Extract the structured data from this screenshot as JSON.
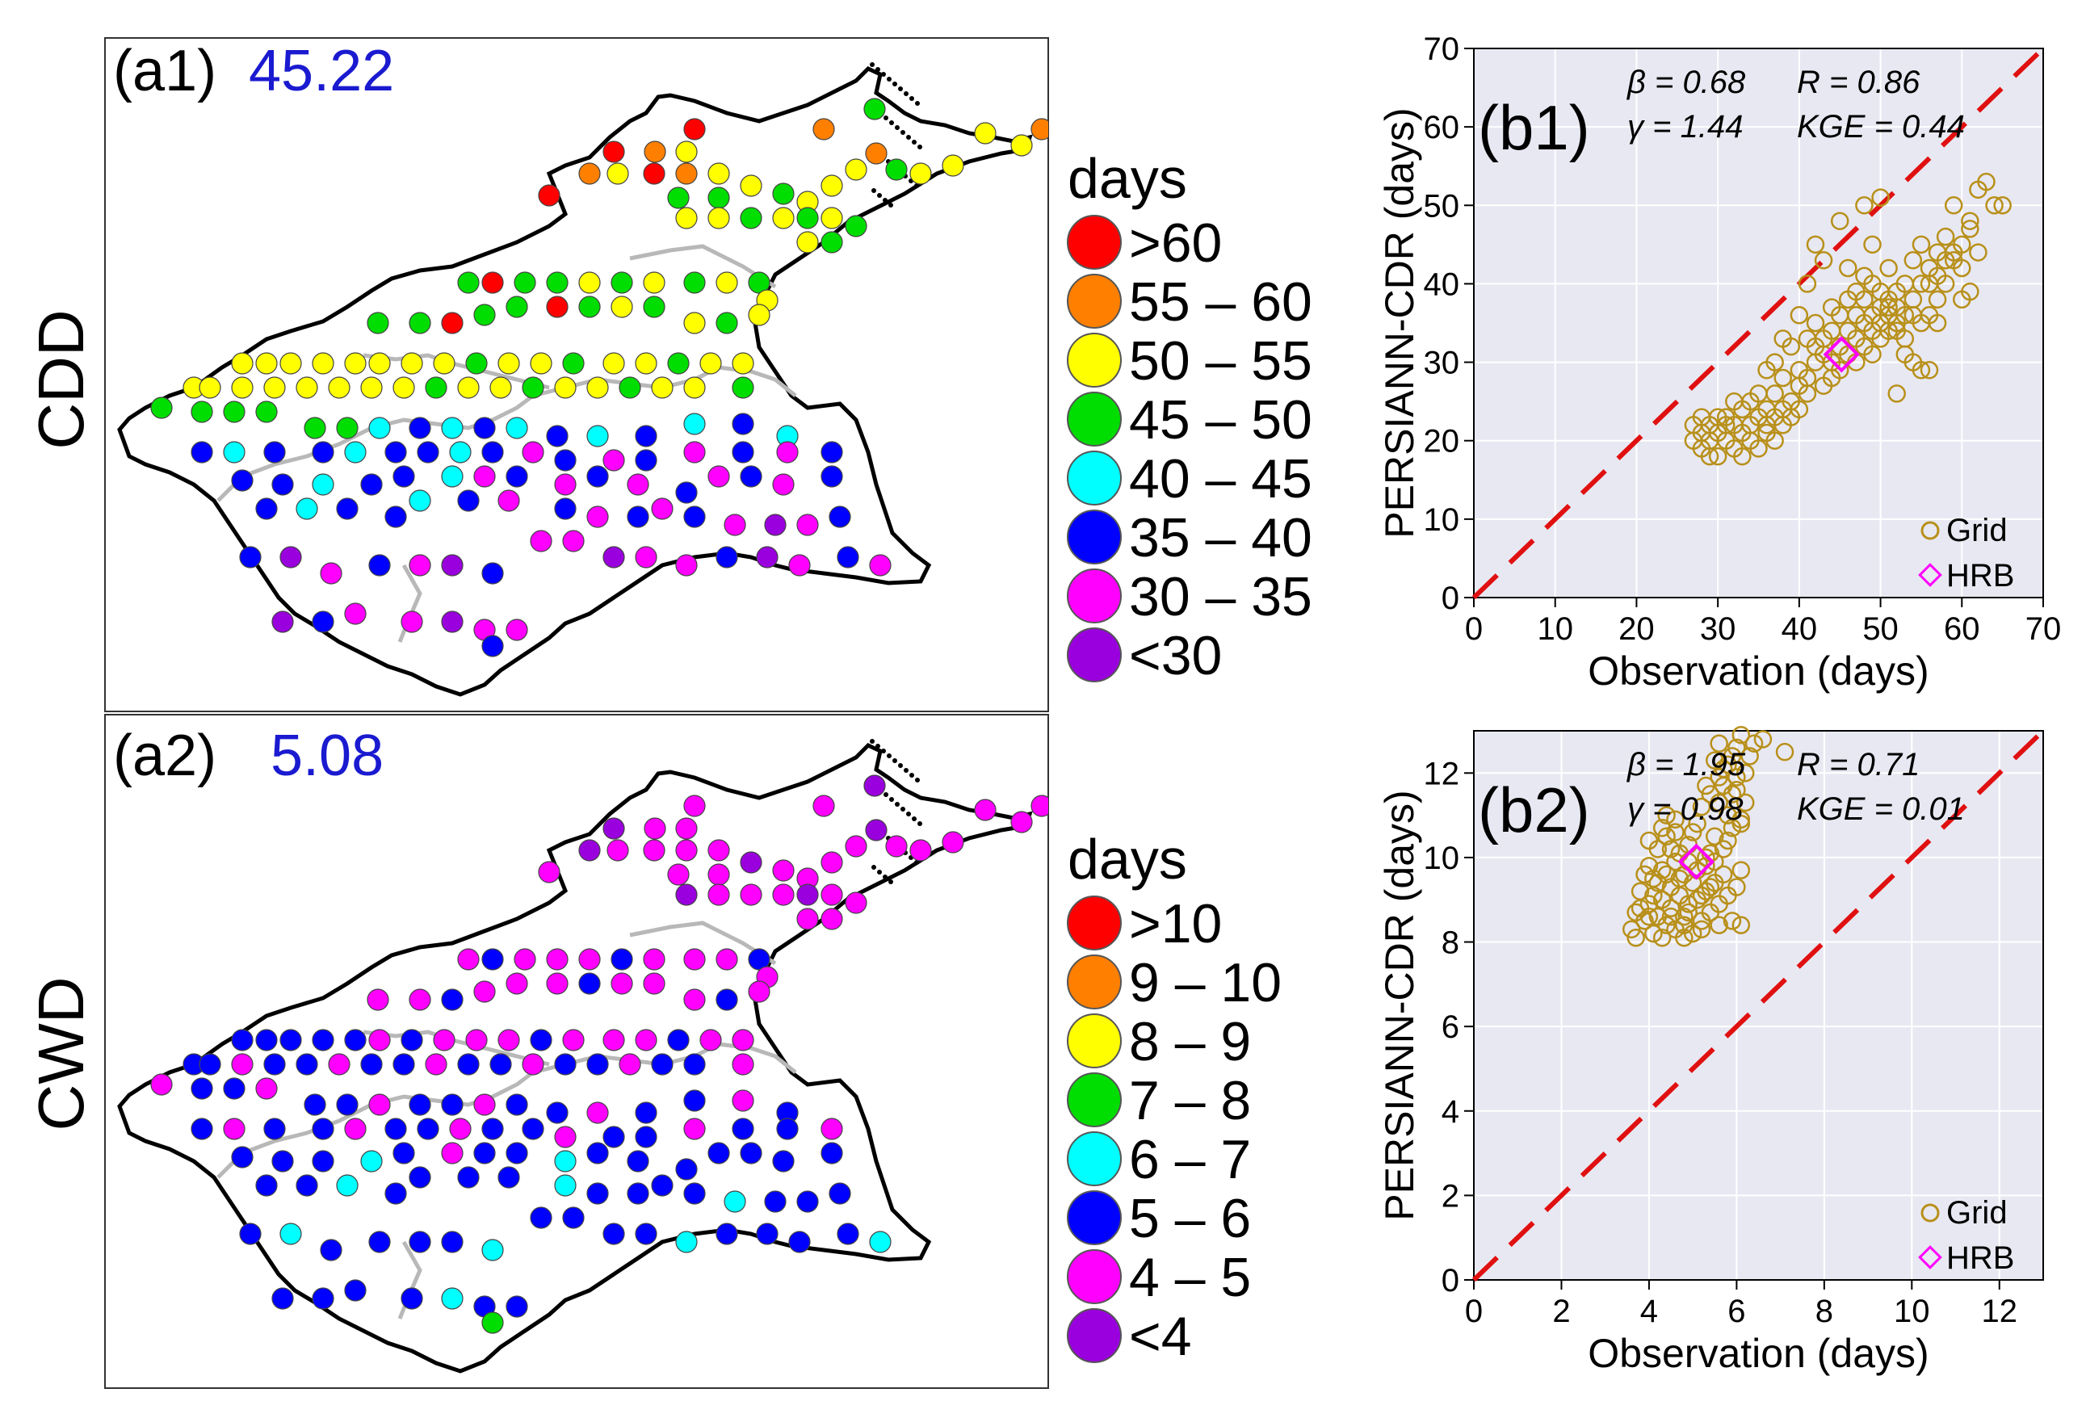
{
  "panels": {
    "a1": {
      "label": "(a1)",
      "value": "45.22",
      "row_label": "CDD"
    },
    "a2": {
      "label": "(a2)",
      "value": "5.08",
      "row_label": "CWD"
    }
  },
  "legend_cdd": {
    "title": "days",
    "items": [
      {
        "label": ">60",
        "color": "#ff0000"
      },
      {
        "label": "55 – 60",
        "color": "#ff7f00"
      },
      {
        "label": "50 – 55",
        "color": "#ffff00"
      },
      {
        "label": "45 – 50",
        "color": "#00dd00"
      },
      {
        "label": "40 – 45",
        "color": "#00ffff"
      },
      {
        "label": "35 – 40",
        "color": "#0000ff"
      },
      {
        "label": "30 – 35",
        "color": "#ff00ff"
      },
      {
        "label": "<30",
        "color": "#9900dd"
      }
    ]
  },
  "legend_cwd": {
    "title": "days",
    "items": [
      {
        "label": ">10",
        "color": "#ff0000"
      },
      {
        "label": "9 – 10",
        "color": "#ff7f00"
      },
      {
        "label": "8 – 9",
        "color": "#ffff00"
      },
      {
        "label": "7 – 8",
        "color": "#00dd00"
      },
      {
        "label": "6 – 7",
        "color": "#00ffff"
      },
      {
        "label": "5 – 6",
        "color": "#0000ff"
      },
      {
        "label": "4 – 5",
        "color": "#ff00ff"
      },
      {
        "label": "<4",
        "color": "#9900dd"
      }
    ]
  },
  "chart_data": [
    {
      "id": "b1",
      "type": "scatter",
      "panel_label": "(b1)",
      "xlabel": "Observation (days)",
      "ylabel": "PERSIANN-CDR (days)",
      "xlim": [
        0,
        70
      ],
      "ylim": [
        0,
        70
      ],
      "xticks": [
        0,
        10,
        20,
        30,
        40,
        50,
        60,
        70
      ],
      "yticks": [
        0,
        10,
        20,
        30,
        40,
        50,
        60,
        70
      ],
      "stats": {
        "beta": "β = 0.68",
        "R": "R = 0.86",
        "gamma": "γ = 1.44",
        "KGE": "KGE = 0.44"
      },
      "legend": [
        "Grid",
        "HRB"
      ],
      "hrb": [
        45.2,
        31
      ],
      "grid": [
        [
          27,
          22
        ],
        [
          27,
          20
        ],
        [
          28,
          19
        ],
        [
          28,
          21
        ],
        [
          29,
          22
        ],
        [
          29,
          18
        ],
        [
          30,
          21
        ],
        [
          30,
          23
        ],
        [
          31,
          22
        ],
        [
          31,
          20
        ],
        [
          32,
          19
        ],
        [
          32,
          22
        ],
        [
          33,
          21
        ],
        [
          33,
          18
        ],
        [
          34,
          22
        ],
        [
          34,
          20
        ],
        [
          35,
          19
        ],
        [
          35,
          23
        ],
        [
          36,
          21
        ],
        [
          36,
          22
        ],
        [
          37,
          23
        ],
        [
          37,
          20
        ],
        [
          38,
          24
        ],
        [
          38,
          22
        ],
        [
          39,
          23
        ],
        [
          39,
          25
        ],
        [
          40,
          24
        ],
        [
          40,
          27
        ],
        [
          41,
          26
        ],
        [
          41,
          28
        ],
        [
          42,
          30
        ],
        [
          42,
          35
        ],
        [
          43,
          31
        ],
        [
          43,
          33
        ],
        [
          44,
          30
        ],
        [
          44,
          28
        ],
        [
          45,
          32
        ],
        [
          45,
          29
        ],
        [
          46,
          34
        ],
        [
          46,
          31
        ],
        [
          47,
          33
        ],
        [
          47,
          36
        ],
        [
          47,
          30
        ],
        [
          48,
          35
        ],
        [
          48,
          32
        ],
        [
          48,
          38
        ],
        [
          49,
          36
        ],
        [
          49,
          34
        ],
        [
          49,
          31
        ],
        [
          50,
          37
        ],
        [
          50,
          35
        ],
        [
          50,
          33
        ],
        [
          51,
          38
        ],
        [
          51,
          36
        ],
        [
          51,
          34
        ],
        [
          52,
          39
        ],
        [
          52,
          37
        ],
        [
          52,
          35
        ],
        [
          53,
          36
        ],
        [
          53,
          40
        ],
        [
          54,
          38
        ],
        [
          54,
          43
        ],
        [
          55,
          45
        ],
        [
          55,
          40
        ],
        [
          56,
          42
        ],
        [
          56,
          36
        ],
        [
          57,
          38
        ],
        [
          57,
          44
        ],
        [
          58,
          46
        ],
        [
          58,
          40
        ],
        [
          59,
          43
        ],
        [
          59,
          50
        ],
        [
          60,
          45
        ],
        [
          60,
          42
        ],
        [
          61,
          48
        ],
        [
          61,
          47
        ],
        [
          62,
          52
        ],
        [
          62,
          44
        ],
        [
          63,
          53
        ],
        [
          64,
          50
        ],
        [
          65,
          50
        ],
        [
          55,
          29
        ],
        [
          56,
          29
        ],
        [
          57,
          35
        ],
        [
          54,
          30
        ],
        [
          53,
          33
        ],
        [
          52,
          26
        ],
        [
          51,
          42
        ],
        [
          50,
          51
        ],
        [
          49,
          45
        ],
        [
          48,
          50
        ],
        [
          46,
          42
        ],
        [
          44,
          37
        ],
        [
          45,
          48
        ],
        [
          43,
          43
        ],
        [
          42,
          45
        ],
        [
          41,
          40
        ],
        [
          40,
          36
        ],
        [
          39,
          32
        ],
        [
          38,
          33
        ],
        [
          37,
          30
        ],
        [
          36,
          29
        ],
        [
          35,
          26
        ],
        [
          34,
          25
        ],
        [
          33,
          24
        ],
        [
          32,
          25
        ],
        [
          31,
          23
        ],
        [
          30,
          18
        ],
        [
          29,
          20
        ],
        [
          28,
          23
        ],
        [
          36,
          24
        ],
        [
          37,
          26
        ],
        [
          38,
          28
        ],
        [
          40,
          29
        ],
        [
          41,
          33
        ],
        [
          42,
          32
        ],
        [
          43,
          27
        ],
        [
          44,
          34
        ],
        [
          45,
          36
        ],
        [
          46,
          38
        ],
        [
          47,
          39
        ],
        [
          48,
          41
        ],
        [
          49,
          40
        ],
        [
          50,
          39
        ],
        [
          51,
          37
        ],
        [
          52,
          34
        ],
        [
          53,
          31
        ],
        [
          54,
          36
        ],
        [
          55,
          35
        ],
        [
          56,
          40
        ],
        [
          57,
          41
        ],
        [
          58,
          43
        ],
        [
          59,
          44
        ],
        [
          60,
          38
        ],
        [
          61,
          39
        ]
      ]
    },
    {
      "id": "b2",
      "type": "scatter",
      "panel_label": "(b2)",
      "xlabel": "Observation (days)",
      "ylabel": "PERSIANN-CDR (days)",
      "xlim": [
        0,
        13
      ],
      "ylim": [
        0,
        13
      ],
      "xticks": [
        0,
        2,
        4,
        6,
        8,
        10,
        12
      ],
      "yticks": [
        0,
        2,
        4,
        6,
        8,
        10,
        12
      ],
      "stats": {
        "beta": "β = 1.95",
        "R": "R = 0.71",
        "gamma": "γ = 0.98",
        "KGE": "KGE = 0.01"
      },
      "legend": [
        "Grid",
        "HRB"
      ],
      "hrb": [
        5.08,
        9.9
      ],
      "grid": [
        [
          3.6,
          8.3
        ],
        [
          3.7,
          8.7
        ],
        [
          3.8,
          9.2
        ],
        [
          3.9,
          8.5
        ],
        [
          4.0,
          9.8
        ],
        [
          4.0,
          8.9
        ],
        [
          4.1,
          8.2
        ],
        [
          4.1,
          9.5
        ],
        [
          4.2,
          10.2
        ],
        [
          4.2,
          8.6
        ],
        [
          4.3,
          9.0
        ],
        [
          4.3,
          9.7
        ],
        [
          4.4,
          8.4
        ],
        [
          4.4,
          10.5
        ],
        [
          4.5,
          9.3
        ],
        [
          4.5,
          8.8
        ],
        [
          4.6,
          9.9
        ],
        [
          4.6,
          8.3
        ],
        [
          4.7,
          10.1
        ],
        [
          4.7,
          9.1
        ],
        [
          4.8,
          8.6
        ],
        [
          4.8,
          9.6
        ],
        [
          4.9,
          10.3
        ],
        [
          4.9,
          8.9
        ],
        [
          5.0,
          9.4
        ],
        [
          5.0,
          8.2
        ],
        [
          5.1,
          10.8
        ],
        [
          5.1,
          9.0
        ],
        [
          5.2,
          11.2
        ],
        [
          5.2,
          8.5
        ],
        [
          5.3,
          10.0
        ],
        [
          5.3,
          9.2
        ],
        [
          5.4,
          11.5
        ],
        [
          5.4,
          8.7
        ],
        [
          5.5,
          10.5
        ],
        [
          5.5,
          9.4
        ],
        [
          5.6,
          11.9
        ],
        [
          5.6,
          8.9
        ],
        [
          5.7,
          12.1
        ],
        [
          5.7,
          10.2
        ],
        [
          5.8,
          11.0
        ],
        [
          5.8,
          9.1
        ],
        [
          5.9,
          12.4
        ],
        [
          5.9,
          10.7
        ],
        [
          6.0,
          11.6
        ],
        [
          6.0,
          12.6
        ],
        [
          6.1,
          8.4
        ],
        [
          6.1,
          10.9
        ],
        [
          6.2,
          12.0
        ],
        [
          5.5,
          12.3
        ],
        [
          5.8,
          12.2
        ],
        [
          6.3,
          12.4
        ],
        [
          6.4,
          12.7
        ],
        [
          4.4,
          11.0
        ],
        [
          4.6,
          10.6
        ],
        [
          4.0,
          10.4
        ],
        [
          3.9,
          9.6
        ],
        [
          4.3,
          8.1
        ],
        [
          4.8,
          8.1
        ],
        [
          5.2,
          8.3
        ],
        [
          5.6,
          8.4
        ],
        [
          5.9,
          8.5
        ],
        [
          6.0,
          9.3
        ],
        [
          5.7,
          9.6
        ],
        [
          5.3,
          9.8
        ],
        [
          4.9,
          9.9
        ],
        [
          4.5,
          10.2
        ],
        [
          4.2,
          9.4
        ],
        [
          4.7,
          9.5
        ],
        [
          5.1,
          9.7
        ],
        [
          5.4,
          10.1
        ],
        [
          5.8,
          10.4
        ],
        [
          6.1,
          10.8
        ],
        [
          5.0,
          10.6
        ],
        [
          4.6,
          10.9
        ],
        [
          4.3,
          10.7
        ],
        [
          5.6,
          11.3
        ],
        [
          5.9,
          11.5
        ],
        [
          6.2,
          11.3
        ],
        [
          6.0,
          11.9
        ],
        [
          5.3,
          11.7
        ],
        [
          5.7,
          11.7
        ],
        [
          3.8,
          8.8
        ],
        [
          4.1,
          9.1
        ],
        [
          4.4,
          9.6
        ],
        [
          4.8,
          8.4
        ],
        [
          5.2,
          9.1
        ],
        [
          5.5,
          9.9
        ],
        [
          6.1,
          9.7
        ],
        [
          5.4,
          9.3
        ],
        [
          4.9,
          8.7
        ],
        [
          4.5,
          8.6
        ],
        [
          4.0,
          8.6
        ],
        [
          3.7,
          8.1
        ],
        [
          6.6,
          12.8
        ],
        [
          7.1,
          12.5
        ],
        [
          5.6,
          12.7
        ],
        [
          6.1,
          12.9
        ]
      ]
    }
  ]
}
